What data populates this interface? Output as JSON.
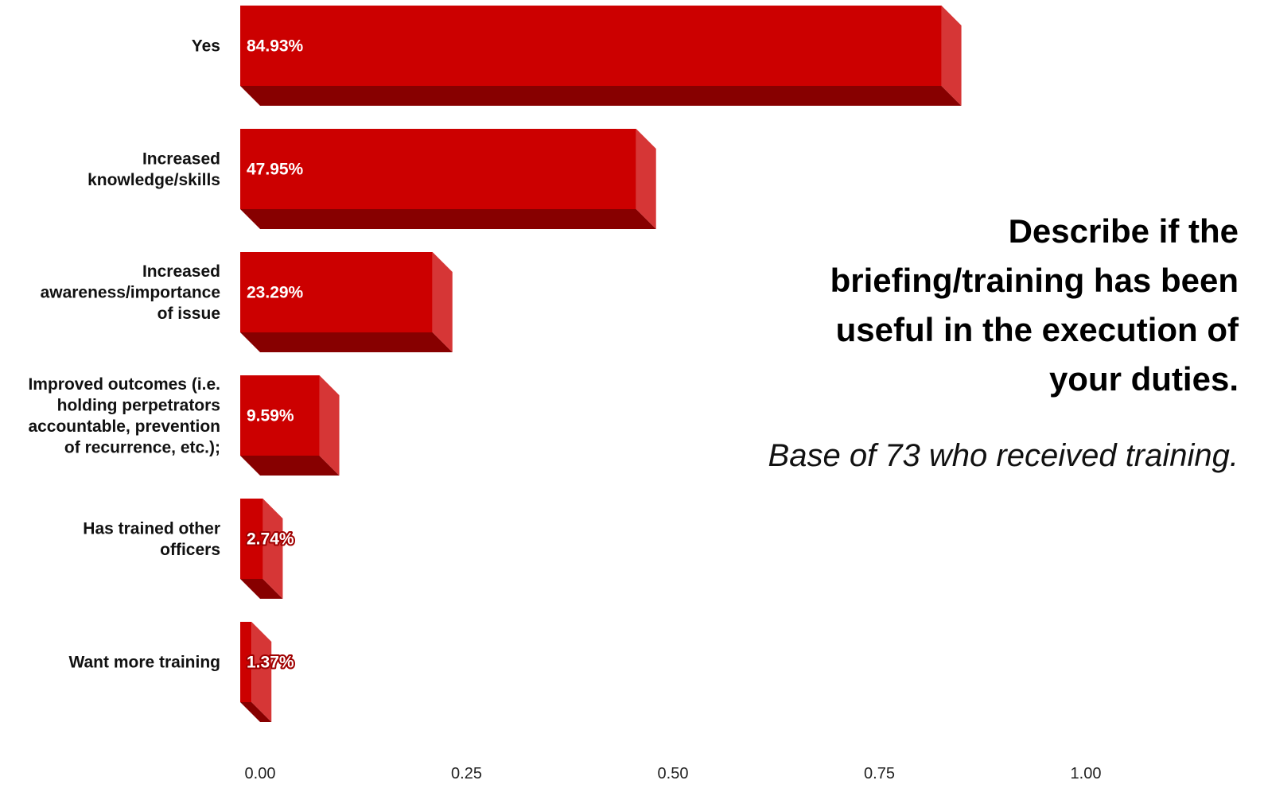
{
  "chart_data": {
    "type": "bar",
    "orientation": "horizontal",
    "title": "Describe if the briefing/training has been useful in the execution of your duties.",
    "subtitle": "Base of 73 who received training.",
    "categories": [
      "Yes",
      "Increased knowledge/skills",
      "Increased awareness/importance of issue",
      "Improved outcomes (i.e. holding perpetrators accountable, prevention of recurrence, etc.);",
      "Has trained other officers",
      "Want more training"
    ],
    "category_lines": [
      [
        "Yes"
      ],
      [
        "Increased",
        "knowledge/skills"
      ],
      [
        "Increased",
        "awareness/importance",
        "of issue"
      ],
      [
        "Improved outcomes (i.e.",
        "holding perpetrators",
        "accountable, prevention",
        "of recurrence, etc.);"
      ],
      [
        "Has trained other",
        "officers"
      ],
      [
        "Want more training"
      ]
    ],
    "values": [
      0.8493,
      0.4795,
      0.2329,
      0.0959,
      0.0274,
      0.0137
    ],
    "data_labels": [
      "84.93%",
      "47.95%",
      "23.29%",
      "9.59%",
      "2.74%",
      "1.37%"
    ],
    "x_ticks": [
      0,
      0.25,
      0.5,
      0.75,
      1.0
    ],
    "x_tick_labels": [
      "0.00",
      "0.25",
      "0.50",
      "0.75",
      "1.00"
    ],
    "xlim": [
      0,
      1.0
    ],
    "xlabel": "",
    "ylabel": "",
    "grid": false,
    "legend": "none",
    "style": "3d",
    "colors": {
      "bar_front": "#cc0000",
      "bar_side": "#d63636",
      "bar_bottom": "#870000"
    }
  }
}
